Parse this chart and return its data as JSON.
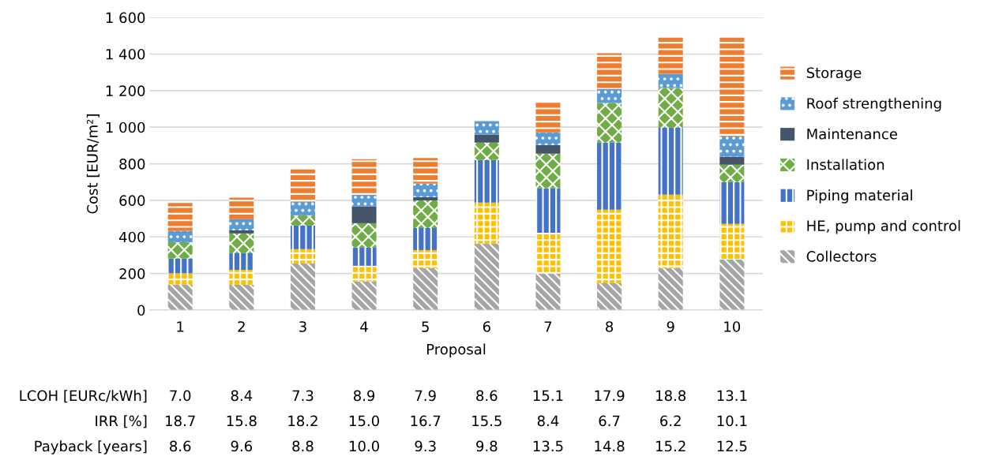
{
  "chart_data": {
    "type": "bar",
    "stacked": true,
    "xlabel": "Proposal",
    "ylabel": "Cost [EUR/m²]",
    "categories": [
      "1",
      "2",
      "3",
      "4",
      "5",
      "6",
      "7",
      "8",
      "9",
      "10"
    ],
    "series": [
      {
        "name": "Collectors",
        "color": "#a5a5a5",
        "values": [
          140,
          138,
          255,
          156,
          229,
          363,
          199,
          147,
          229,
          276
        ]
      },
      {
        "name": "HE, pump and control",
        "color": "#ffc000",
        "values": [
          60,
          82,
          78,
          86,
          99,
          225,
          224,
          402,
          402,
          195
        ]
      },
      {
        "name": "Piping material",
        "color": "#4472c4",
        "values": [
          82,
          91,
          129,
          99,
          121,
          233,
          242,
          367,
          367,
          229
        ]
      },
      {
        "name": "Installation",
        "color": "#70ad47",
        "values": [
          89,
          108,
          56,
          134,
          151,
          95,
          190,
          216,
          216,
          95
        ]
      },
      {
        "name": "Maintenance",
        "color": "#44546a",
        "values": [
          0,
          17,
          0,
          91,
          18,
          43,
          48,
          0,
          0,
          43
        ]
      },
      {
        "name": "Roof strengthening",
        "color": "#5b9bd5",
        "values": [
          61,
          61,
          74,
          65,
          73,
          74,
          69,
          78,
          78,
          112
        ]
      },
      {
        "name": "Storage",
        "color": "#ed7d31",
        "values": [
          153,
          118,
          177,
          194,
          140,
          0,
          164,
          194,
          198,
          540
        ]
      }
    ],
    "ylim": [
      0,
      1600
    ],
    "yticks": [
      0,
      200,
      400,
      600,
      800,
      {
        "value": 1000,
        "label": "1 000"
      },
      {
        "value": 1200,
        "label": "1 200"
      },
      {
        "value": 1400,
        "label": "1 400"
      },
      {
        "value": 1600,
        "label": "1 600"
      }
    ],
    "grid": "y",
    "legend": "right",
    "annotations": [
      "LCOH [EURc/kWh]",
      "7.0",
      "8.4",
      "7.3",
      "8.9",
      "7.9",
      "8.6",
      "15.1",
      "17.9",
      "18.8",
      "13.1",
      "IRR [%]",
      "18.7",
      "15.8",
      "18.2",
      "15.0",
      "16.7",
      "15.5",
      "8.4",
      "6.7",
      "6.2",
      "10.1",
      "Payback [years]",
      "8.6",
      "9.6",
      "8.8",
      "10.0",
      "9.3",
      "9.8",
      "13.5",
      "14.8",
      "15.2",
      "12.5"
    ]
  }
}
